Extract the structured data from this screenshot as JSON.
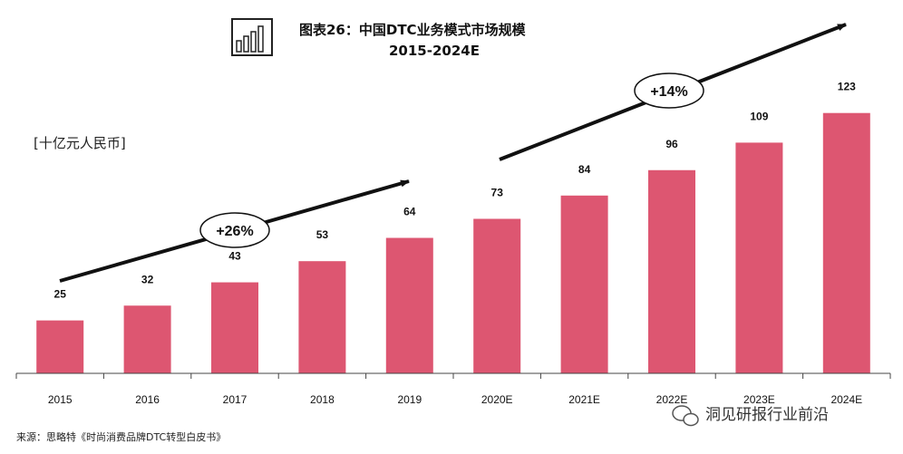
{
  "chart_data": {
    "type": "bar",
    "title": "图表26：中国DTC业务模式市场规模",
    "subtitle": "2015-2024E",
    "ylabel": "[十亿元人民币]",
    "xlabel": "",
    "categories": [
      "2015",
      "2016",
      "2017",
      "2018",
      "2019",
      "2020E",
      "2021E",
      "2022E",
      "2023E",
      "2024E"
    ],
    "values": [
      25,
      32,
      43,
      53,
      64,
      73,
      84,
      96,
      109,
      123
    ],
    "ylim": [
      0,
      140
    ],
    "grid": false,
    "bar_color": "#dd5671",
    "annotations": [
      {
        "label": "+26%",
        "from": "2015",
        "to": "2019"
      },
      {
        "label": "+14%",
        "from": "2020E",
        "to": "2024E"
      }
    ]
  },
  "source": "来源：思略特《时尚消费品牌DTC转型白皮书》",
  "watermark": "洞见研报行业前沿",
  "icon": "bar-chart-icon"
}
